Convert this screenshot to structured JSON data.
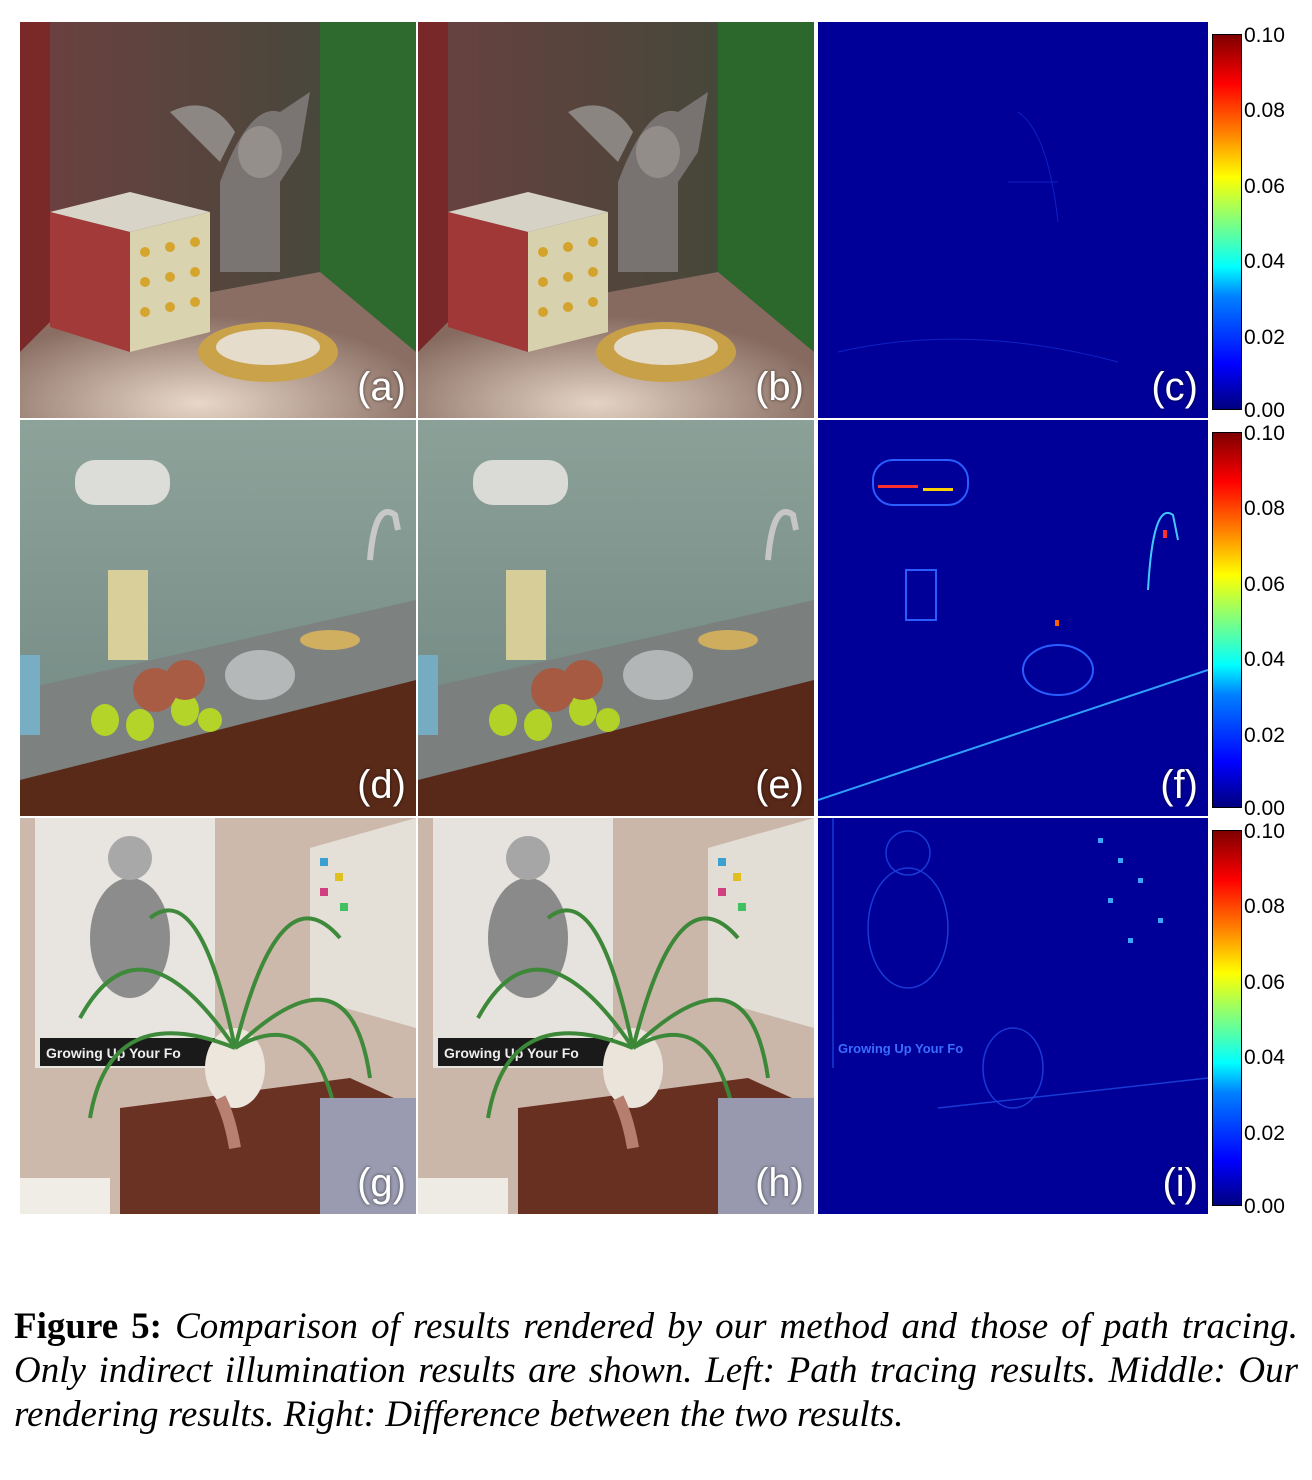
{
  "panels": [
    {
      "label": "(a)",
      "scene": "gargoyle",
      "kind": "render"
    },
    {
      "label": "(b)",
      "scene": "gargoyle",
      "kind": "render"
    },
    {
      "label": "(c)",
      "scene": "gargoyle",
      "kind": "difference"
    },
    {
      "label": "(d)",
      "scene": "kitchen",
      "kind": "render"
    },
    {
      "label": "(e)",
      "scene": "kitchen",
      "kind": "render"
    },
    {
      "label": "(f)",
      "scene": "kitchen",
      "kind": "difference"
    },
    {
      "label": "(g)",
      "scene": "living-room",
      "kind": "render"
    },
    {
      "label": "(h)",
      "scene": "living-room",
      "kind": "render"
    },
    {
      "label": "(i)",
      "scene": "living-room",
      "kind": "difference"
    }
  ],
  "colorbar": {
    "ticks": [
      "0.10",
      "0.08",
      "0.06",
      "0.04",
      "0.02",
      "0.00"
    ],
    "min": 0.0,
    "max": 0.1,
    "colormap": "jet"
  },
  "poster_text": "Growing Up Your Fo",
  "caption": {
    "label": "Figure 5:",
    "text": "Comparison of results rendered by our method and those of path tracing. Only indirect illumination results are shown. Left: Path tracing results. Middle: Our rendering results. Right: Difference between the two results."
  }
}
